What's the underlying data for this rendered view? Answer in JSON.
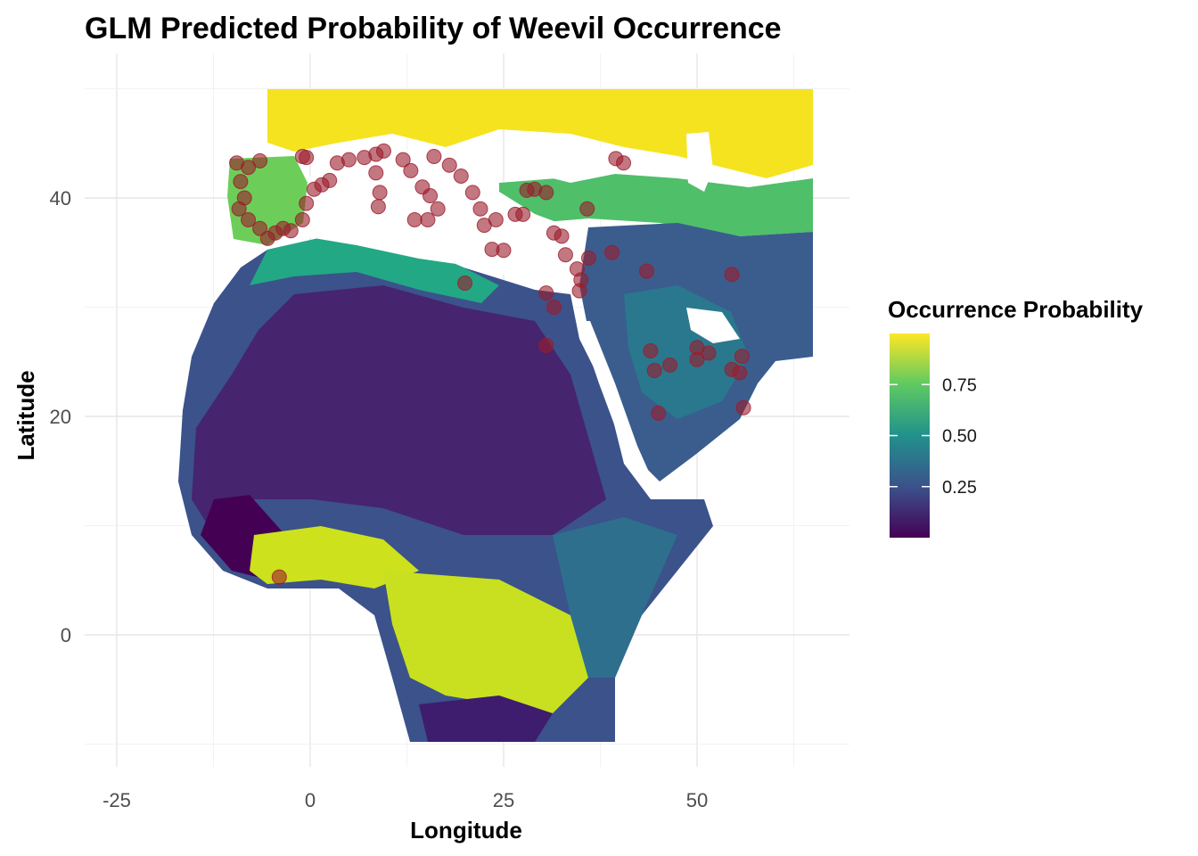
{
  "chart_data": {
    "type": "heatmap",
    "title": "GLM Predicted Probability of Weevil Occurrence",
    "xlabel": "Longitude",
    "ylabel": "Latitude",
    "xlim": [
      -30,
      69
    ],
    "ylim": [
      -12,
      53
    ],
    "x_ticks": [
      -25,
      0,
      25,
      50
    ],
    "x_tick_labels": [
      "-25",
      "0",
      "25",
      "50"
    ],
    "y_ticks": [
      0,
      20,
      40
    ],
    "y_tick_labels": [
      "0",
      "20",
      "40"
    ],
    "grid": true,
    "legend": {
      "title": "Occurrence Probability",
      "placement": "right",
      "palette": "viridis",
      "colors": [
        "#440154",
        "#3b528b",
        "#21918c",
        "#5ec962",
        "#fde725"
      ],
      "range": [
        0.0,
        1.0
      ],
      "ticks": [
        0.25,
        0.5,
        0.75
      ],
      "tick_labels": [
        "0.25",
        "0.50",
        "0.75"
      ]
    },
    "occurrence_color": "#9b1c2c",
    "occurrence_points": [
      [
        -9.5,
        43.2
      ],
      [
        -8.0,
        42.8
      ],
      [
        -6.5,
        43.4
      ],
      [
        -9.0,
        41.5
      ],
      [
        -8.5,
        40.0
      ],
      [
        -9.2,
        39.0
      ],
      [
        -8.0,
        38.0
      ],
      [
        -6.5,
        37.2
      ],
      [
        -5.5,
        36.3
      ],
      [
        -4.5,
        36.8
      ],
      [
        -3.5,
        37.2
      ],
      [
        -2.5,
        37.0
      ],
      [
        -1.0,
        38.0
      ],
      [
        -0.5,
        39.5
      ],
      [
        0.5,
        40.8
      ],
      [
        1.5,
        41.2
      ],
      [
        2.5,
        41.6
      ],
      [
        3.5,
        43.2
      ],
      [
        5.0,
        43.5
      ],
      [
        7.0,
        43.7
      ],
      [
        8.5,
        44.0
      ],
      [
        9.5,
        44.3
      ],
      [
        8.5,
        42.3
      ],
      [
        9.0,
        40.5
      ],
      [
        8.8,
        39.2
      ],
      [
        12.0,
        43.5
      ],
      [
        13.0,
        42.5
      ],
      [
        14.5,
        41.0
      ],
      [
        15.5,
        40.2
      ],
      [
        16.5,
        39.0
      ],
      [
        15.2,
        38.0
      ],
      [
        13.5,
        38.0
      ],
      [
        16.0,
        43.8
      ],
      [
        18.0,
        43.0
      ],
      [
        19.5,
        42.0
      ],
      [
        21.0,
        40.5
      ],
      [
        22.0,
        39.0
      ],
      [
        22.5,
        37.5
      ],
      [
        24.0,
        38.0
      ],
      [
        23.5,
        35.3
      ],
      [
        25.0,
        35.2
      ],
      [
        26.5,
        38.5
      ],
      [
        27.5,
        38.5
      ],
      [
        29.0,
        40.8
      ],
      [
        30.5,
        40.5
      ],
      [
        31.5,
        36.8
      ],
      [
        32.5,
        36.5
      ],
      [
        33.0,
        34.8
      ],
      [
        34.5,
        33.5
      ],
      [
        35.0,
        32.5
      ],
      [
        34.8,
        31.5
      ],
      [
        36.0,
        34.5
      ],
      [
        35.8,
        39.0
      ],
      [
        39.0,
        35.0
      ],
      [
        39.5,
        43.6
      ],
      [
        40.5,
        43.2
      ],
      [
        20.0,
        32.2
      ],
      [
        30.5,
        31.3
      ],
      [
        31.5,
        30.0
      ],
      [
        30.5,
        26.5
      ],
      [
        43.5,
        33.3
      ],
      [
        44.0,
        26.0
      ],
      [
        44.5,
        24.2
      ],
      [
        45.0,
        20.3
      ],
      [
        46.5,
        24.7
      ],
      [
        50.0,
        26.3
      ],
      [
        50.0,
        25.2
      ],
      [
        51.5,
        25.8
      ],
      [
        54.5,
        33.0
      ],
      [
        54.5,
        24.3
      ],
      [
        55.5,
        24.0
      ],
      [
        55.8,
        25.5
      ],
      [
        56.0,
        20.8
      ],
      [
        -4.0,
        5.3
      ],
      [
        -0.5,
        43.7
      ],
      [
        -1.0,
        43.8
      ],
      [
        28.0,
        40.7
      ]
    ]
  }
}
